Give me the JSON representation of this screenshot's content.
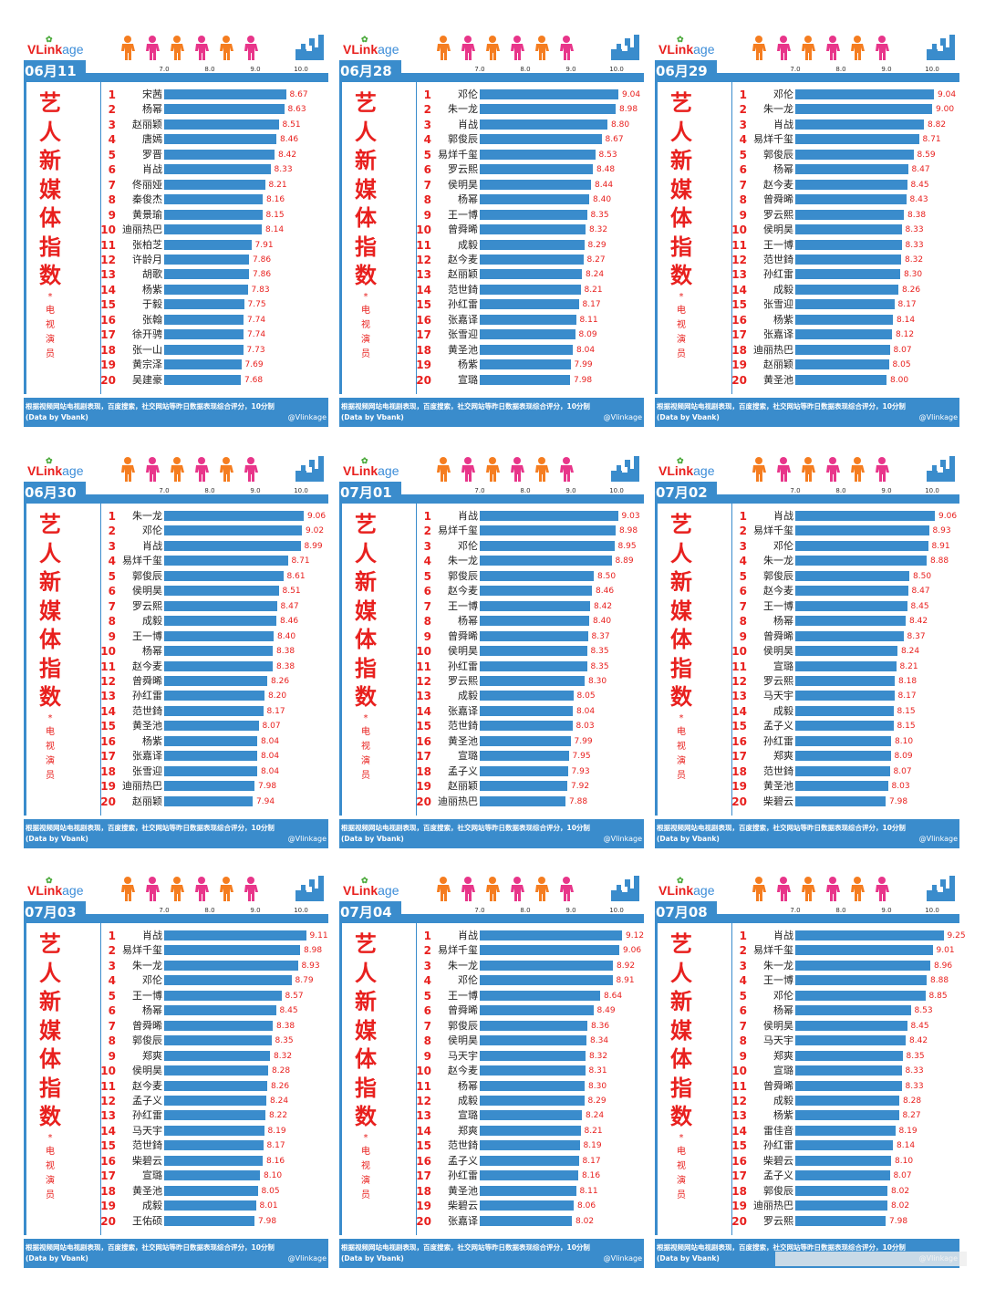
{
  "logo": {
    "v": "V",
    "link": "Link",
    "age": "age"
  },
  "title_chars": [
    "艺",
    "人",
    "新",
    "媒",
    "体",
    "指",
    "数"
  ],
  "subtitle_chars": [
    "电",
    "视",
    "演",
    "员"
  ],
  "footer": {
    "line1": "根据视频网站电视剧表现，百度搜索，社交网站等昨日数据表现综合评分，10分制",
    "line2": "(Data by Vbank)",
    "credit": "@Vlinkage"
  },
  "colors": {
    "bar": "#3a8ccc",
    "rank": "#e8201e",
    "title": "#e8201e"
  },
  "chart_data": [
    {
      "type": "bar",
      "date": "06月11日",
      "xlim": [
        6.0,
        10.0
      ],
      "ticks": [
        "7.0",
        "8.0",
        "9.0",
        "10.0"
      ],
      "categories": [
        "宋茜",
        "杨幂",
        "赵丽颖",
        "唐嫣",
        "罗晋",
        "肖战",
        "佟丽娅",
        "秦俊杰",
        "黄景瑜",
        "迪丽热巴",
        "张柏芝",
        "许龄月",
        "胡歌",
        "杨紫",
        "于毅",
        "张翰",
        "徐开骋",
        "张一山",
        "黄宗泽",
        "吴建豪"
      ],
      "values": [
        8.67,
        8.63,
        8.51,
        8.46,
        8.42,
        8.33,
        8.21,
        8.16,
        8.15,
        8.14,
        7.91,
        7.86,
        7.86,
        7.83,
        7.75,
        7.74,
        7.74,
        7.73,
        7.69,
        7.68
      ]
    },
    {
      "type": "bar",
      "date": "06月28日",
      "xlim": [
        6.0,
        10.0
      ],
      "ticks": [
        "7.0",
        "8.0",
        "9.0",
        "10.0"
      ],
      "categories": [
        "邓伦",
        "朱一龙",
        "肖战",
        "郭俊辰",
        "易烊千玺",
        "罗云熙",
        "侯明昊",
        "杨幂",
        "王一博",
        "曾舜晞",
        "成毅",
        "赵今麦",
        "赵丽颖",
        "范世錡",
        "孙红雷",
        "张嘉译",
        "张雪迎",
        "黄圣池",
        "杨紫",
        "宣璐"
      ],
      "values": [
        9.04,
        8.98,
        8.8,
        8.67,
        8.53,
        8.48,
        8.44,
        8.4,
        8.35,
        8.32,
        8.29,
        8.27,
        8.24,
        8.21,
        8.17,
        8.11,
        8.09,
        8.04,
        7.99,
        7.98
      ]
    },
    {
      "type": "bar",
      "date": "06月29日",
      "xlim": [
        6.0,
        10.0
      ],
      "ticks": [
        "7.0",
        "8.0",
        "9.0",
        "10.0"
      ],
      "categories": [
        "邓伦",
        "朱一龙",
        "肖战",
        "易烊千玺",
        "郭俊辰",
        "杨幂",
        "赵今麦",
        "曾舜晞",
        "罗云熙",
        "侯明昊",
        "王一博",
        "范世錡",
        "孙红雷",
        "成毅",
        "张雪迎",
        "杨紫",
        "张嘉译",
        "迪丽热巴",
        "赵丽颖",
        "黄圣池"
      ],
      "values": [
        9.04,
        9.0,
        8.82,
        8.71,
        8.59,
        8.47,
        8.45,
        8.43,
        8.38,
        8.33,
        8.33,
        8.32,
        8.3,
        8.26,
        8.17,
        8.14,
        8.12,
        8.07,
        8.05,
        8.0
      ]
    },
    {
      "type": "bar",
      "date": "06月30日",
      "xlim": [
        6.0,
        10.0
      ],
      "ticks": [
        "7.0",
        "8.0",
        "9.0",
        "10.0"
      ],
      "categories": [
        "朱一龙",
        "邓伦",
        "肖战",
        "易烊千玺",
        "郭俊辰",
        "侯明昊",
        "罗云熙",
        "成毅",
        "王一博",
        "杨幂",
        "赵今麦",
        "曾舜晞",
        "孙红雷",
        "范世錡",
        "黄圣池",
        "杨紫",
        "张嘉译",
        "张雪迎",
        "迪丽热巴",
        "赵丽颖"
      ],
      "values": [
        9.06,
        9.02,
        8.99,
        8.71,
        8.61,
        8.51,
        8.47,
        8.46,
        8.4,
        8.38,
        8.38,
        8.26,
        8.2,
        8.17,
        8.07,
        8.04,
        8.04,
        8.04,
        7.98,
        7.94
      ]
    },
    {
      "type": "bar",
      "date": "07月01日",
      "xlim": [
        6.0,
        10.0
      ],
      "ticks": [
        "7.0",
        "8.0",
        "9.0",
        "10.0"
      ],
      "categories": [
        "肖战",
        "易烊千玺",
        "邓伦",
        "朱一龙",
        "郭俊辰",
        "赵今麦",
        "王一博",
        "杨幂",
        "曾舜晞",
        "侯明昊",
        "孙红雷",
        "罗云熙",
        "成毅",
        "张嘉译",
        "范世錡",
        "黄圣池",
        "宣璐",
        "孟子义",
        "赵丽颖",
        "迪丽热巴"
      ],
      "values": [
        9.03,
        8.98,
        8.95,
        8.89,
        8.5,
        8.46,
        8.42,
        8.4,
        8.37,
        8.35,
        8.35,
        8.3,
        8.05,
        8.04,
        8.03,
        7.99,
        7.95,
        7.93,
        7.92,
        7.88
      ]
    },
    {
      "type": "bar",
      "date": "07月02日",
      "xlim": [
        6.0,
        10.0
      ],
      "ticks": [
        "7.0",
        "8.0",
        "9.0",
        "10.0"
      ],
      "categories": [
        "肖战",
        "易烊千玺",
        "邓伦",
        "朱一龙",
        "郭俊辰",
        "赵今麦",
        "王一博",
        "杨幂",
        "曾舜晞",
        "侯明昊",
        "宣璐",
        "罗云熙",
        "马天宇",
        "成毅",
        "孟子义",
        "孙红雷",
        "郑爽",
        "范世錡",
        "黄圣池",
        "柴碧云"
      ],
      "values": [
        9.06,
        8.93,
        8.91,
        8.88,
        8.5,
        8.47,
        8.45,
        8.42,
        8.37,
        8.24,
        8.21,
        8.18,
        8.17,
        8.15,
        8.15,
        8.1,
        8.09,
        8.07,
        8.03,
        7.98
      ]
    },
    {
      "type": "bar",
      "date": "07月03日",
      "xlim": [
        6.0,
        10.0
      ],
      "ticks": [
        "7.0",
        "8.0",
        "9.0",
        "10.0"
      ],
      "categories": [
        "肖战",
        "易烊千玺",
        "朱一龙",
        "邓伦",
        "王一博",
        "杨幂",
        "曾舜晞",
        "郭俊辰",
        "郑爽",
        "侯明昊",
        "赵今麦",
        "孟子义",
        "孙红雷",
        "马天宇",
        "范世錡",
        "柴碧云",
        "宣璐",
        "黄圣池",
        "成毅",
        "王佑硕"
      ],
      "values": [
        9.11,
        8.98,
        8.93,
        8.79,
        8.57,
        8.45,
        8.38,
        8.35,
        8.32,
        8.28,
        8.26,
        8.24,
        8.22,
        8.19,
        8.17,
        8.16,
        8.1,
        8.05,
        8.01,
        7.98
      ]
    },
    {
      "type": "bar",
      "date": "07月04日",
      "xlim": [
        6.0,
        10.0
      ],
      "ticks": [
        "7.0",
        "8.0",
        "9.0",
        "10.0"
      ],
      "categories": [
        "肖战",
        "易烊千玺",
        "朱一龙",
        "邓伦",
        "王一博",
        "曾舜晞",
        "郭俊辰",
        "侯明昊",
        "马天宇",
        "赵今麦",
        "杨幂",
        "成毅",
        "宣璐",
        "郑爽",
        "范世錡",
        "孟子义",
        "孙红雷",
        "黄圣池",
        "柴碧云",
        "张嘉译"
      ],
      "values": [
        9.12,
        9.06,
        8.92,
        8.91,
        8.64,
        8.49,
        8.36,
        8.34,
        8.32,
        8.31,
        8.3,
        8.29,
        8.24,
        8.21,
        8.19,
        8.17,
        8.16,
        8.11,
        8.06,
        8.02
      ]
    },
    {
      "type": "bar",
      "date": "07月08日",
      "xlim": [
        6.0,
        10.0
      ],
      "ticks": [
        "7.0",
        "8.0",
        "9.0",
        "10.0"
      ],
      "categories": [
        "肖战",
        "易烊千玺",
        "朱一龙",
        "王一博",
        "邓伦",
        "杨幂",
        "侯明昊",
        "马天宇",
        "郑爽",
        "宣璐",
        "曾舜晞",
        "成毅",
        "杨紫",
        "雷佳音",
        "孙红雷",
        "柴碧云",
        "孟子义",
        "郭俊辰",
        "迪丽热巴",
        "罗云熙"
      ],
      "values": [
        9.25,
        9.01,
        8.96,
        8.88,
        8.85,
        8.53,
        8.45,
        8.42,
        8.35,
        8.33,
        8.33,
        8.28,
        8.27,
        8.19,
        8.14,
        8.1,
        8.07,
        8.02,
        8.02,
        7.98
      ]
    }
  ]
}
